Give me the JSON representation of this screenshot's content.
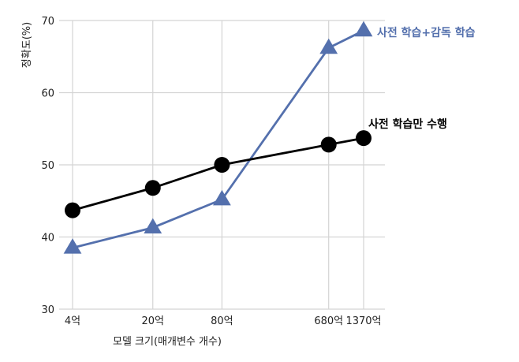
{
  "chart_data": {
    "type": "line",
    "xlabel": "모델 크기(매개변수 개수)",
    "ylabel": "정확도(%)",
    "x_scale": "log",
    "x": [
      4,
      20,
      80,
      680,
      1370
    ],
    "categories": [
      "4억",
      "20억",
      "80억",
      "680억",
      "1370억"
    ],
    "ylim": [
      30,
      70
    ],
    "yticks": [
      30,
      40,
      50,
      60,
      70
    ],
    "grid": true,
    "series": [
      {
        "name": "사전 학습+감독 학습",
        "marker": "triangle",
        "color": "#5470ad",
        "values": [
          38.5,
          41.3,
          45.2,
          66.2,
          68.6
        ]
      },
      {
        "name": "사전 학습만 수행",
        "marker": "circle",
        "color": "#000000",
        "values": [
          43.7,
          46.8,
          50.0,
          52.8,
          53.7
        ]
      }
    ]
  }
}
